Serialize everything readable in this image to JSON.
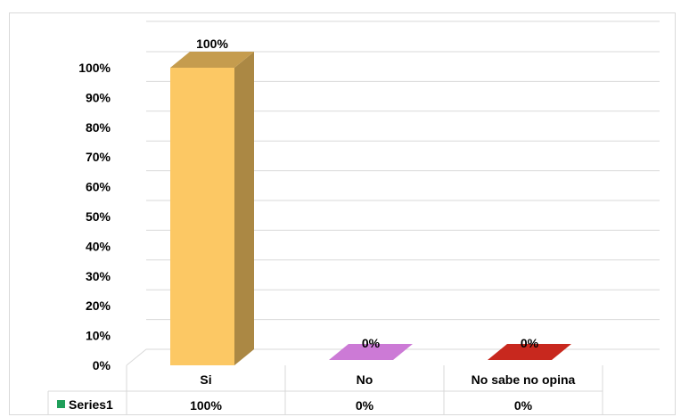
{
  "chart_data": {
    "type": "bar",
    "bar_style": "3d",
    "categories": [
      "Si",
      "No",
      "No sabe no opina"
    ],
    "series": [
      {
        "name": "Series1",
        "values": [
          1.0,
          0.0,
          0.0
        ],
        "value_labels": [
          "100%",
          "0%",
          "0%"
        ]
      }
    ],
    "bar_colors": [
      "#fcc864",
      "#cc7ad6",
      "#c8281e"
    ],
    "legend_color": "#1f9f5a",
    "y_ticks": [
      "0%",
      "10%",
      "20%",
      "30%",
      "40%",
      "50%",
      "60%",
      "70%",
      "80%",
      "90%",
      "100%"
    ],
    "ylim": [
      0,
      1
    ],
    "grid": true,
    "legend": "data-table",
    "title": "",
    "xlabel": "",
    "ylabel": ""
  }
}
